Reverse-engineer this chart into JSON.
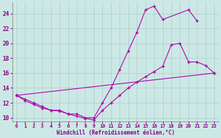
{
  "xlabel": "Windchill (Refroidissement éolien,°C)",
  "background_color": "#cce8e4",
  "grid_color": "#aacccc",
  "line_color": "#aa00aa",
  "xlim": [
    -0.5,
    23.5
  ],
  "ylim": [
    9.5,
    25.5
  ],
  "yticks": [
    10,
    12,
    14,
    16,
    18,
    20,
    22,
    24
  ],
  "xticks": [
    0,
    1,
    2,
    3,
    4,
    5,
    6,
    7,
    8,
    9,
    10,
    11,
    12,
    13,
    14,
    15,
    16,
    17,
    18,
    19,
    20,
    21,
    22,
    23
  ],
  "series1_x": [
    0,
    1,
    2,
    3,
    4,
    5,
    6,
    7,
    8,
    9,
    10,
    11,
    12,
    13,
    14,
    15,
    16,
    17,
    20,
    21
  ],
  "series1_y": [
    13.0,
    12.5,
    12.0,
    11.5,
    11.0,
    11.0,
    10.5,
    10.5,
    10.0,
    10.0,
    12.0,
    14.0,
    16.5,
    19.0,
    21.5,
    24.5,
    25.0,
    23.2,
    24.5,
    23.0
  ],
  "series2_x": [
    0,
    1,
    2,
    3,
    4,
    5,
    6,
    7,
    8,
    9,
    10,
    11,
    12,
    13,
    14,
    15,
    16,
    17,
    18,
    19,
    20,
    21,
    22,
    23
  ],
  "series2_y": [
    13.0,
    12.3,
    11.8,
    11.3,
    11.0,
    10.9,
    10.5,
    10.2,
    9.9,
    9.7,
    11.0,
    12.0,
    13.0,
    14.0,
    14.8,
    15.5,
    16.2,
    16.9,
    19.8,
    20.0,
    17.5,
    17.5,
    17.0,
    16.0
  ],
  "series3_x": [
    0,
    23
  ],
  "series3_y": [
    13.0,
    16.0
  ],
  "figsize": [
    3.2,
    2.0
  ],
  "dpi": 100
}
